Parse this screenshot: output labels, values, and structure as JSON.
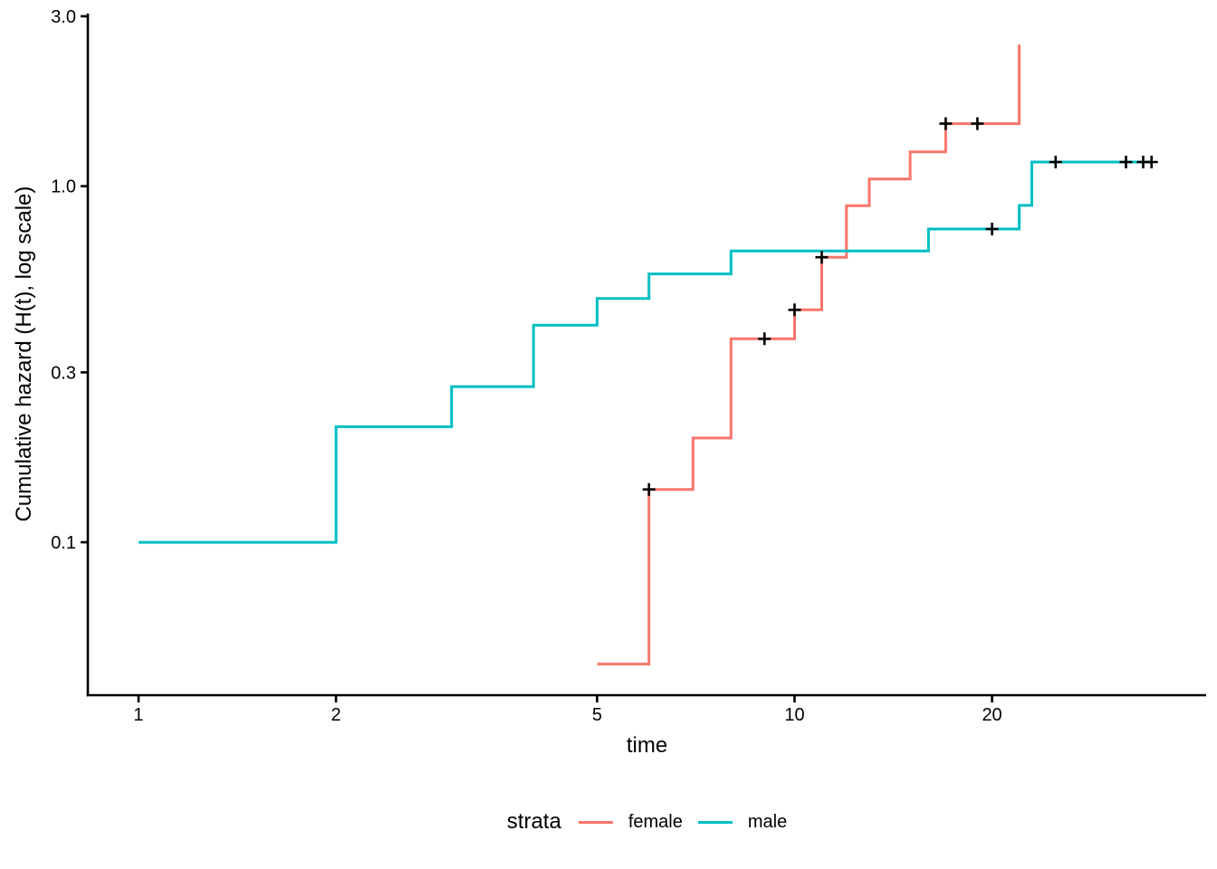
{
  "figure": {
    "background": "#ffffff",
    "axis_color": "#000000",
    "text_color": "#000000"
  },
  "chart_data": {
    "type": "line",
    "variant": "step_function_cumulative_hazard",
    "title": "",
    "xlabel": "time",
    "ylabel": "Cumulative hazard (H(t), log scale)",
    "xscale": "log10",
    "yscale": "log10",
    "grid": false,
    "xlim": [
      0.837,
      42.4
    ],
    "ylim": [
      0.0372,
      3.053
    ],
    "x_ticks": [
      {
        "value": 1,
        "label": "1"
      },
      {
        "value": 2,
        "label": "2"
      },
      {
        "value": 5,
        "label": "5"
      },
      {
        "value": 10,
        "label": "10"
      },
      {
        "value": 20,
        "label": "20"
      }
    ],
    "y_ticks": [
      {
        "value": 3.0,
        "label": "3.0"
      },
      {
        "value": 1.0,
        "label": "1.0"
      },
      {
        "value": 0.3,
        "label": "0.3"
      },
      {
        "value": 0.1,
        "label": "0.1"
      }
    ],
    "legend": {
      "title": "strata",
      "position": "bottom",
      "entries": [
        "female",
        "male"
      ]
    },
    "censor_mark": {
      "symbol": "+",
      "color": "#000000",
      "half_size": 7
    },
    "series": [
      {
        "name": "female",
        "color": "#F8766D",
        "points": [
          [
            5,
            0.0455
          ],
          [
            6,
            0.1407
          ],
          [
            7,
            0.1962
          ],
          [
            8,
            0.3727
          ],
          [
            10,
            0.4496
          ],
          [
            11,
            0.6314
          ],
          [
            12,
            0.8814
          ],
          [
            13,
            1.0481
          ],
          [
            15,
            1.2481
          ],
          [
            17,
            1.4981
          ],
          [
            22,
            2.4981
          ]
        ],
        "end_time": 22,
        "censors": [
          [
            6,
            0.1407
          ],
          [
            9,
            0.3727
          ],
          [
            10,
            0.4496
          ],
          [
            11,
            0.6314
          ],
          [
            17,
            1.4981
          ],
          [
            19,
            1.4981
          ]
        ]
      },
      {
        "name": "male",
        "color": "#00BFC4",
        "points": [
          [
            1,
            0.1
          ],
          [
            2,
            0.2111
          ],
          [
            3,
            0.2736
          ],
          [
            4,
            0.4069
          ],
          [
            5,
            0.4838
          ],
          [
            6,
            0.5671
          ],
          [
            8,
            0.658
          ],
          [
            16,
            0.758
          ],
          [
            22,
            0.883
          ],
          [
            23,
            1.1687
          ]
        ],
        "end_time": 35,
        "censors": [
          [
            20,
            0.758
          ],
          [
            25,
            1.1687
          ],
          [
            32,
            1.1687
          ],
          [
            34,
            1.1687
          ],
          [
            35,
            1.1687
          ]
        ]
      }
    ]
  }
}
